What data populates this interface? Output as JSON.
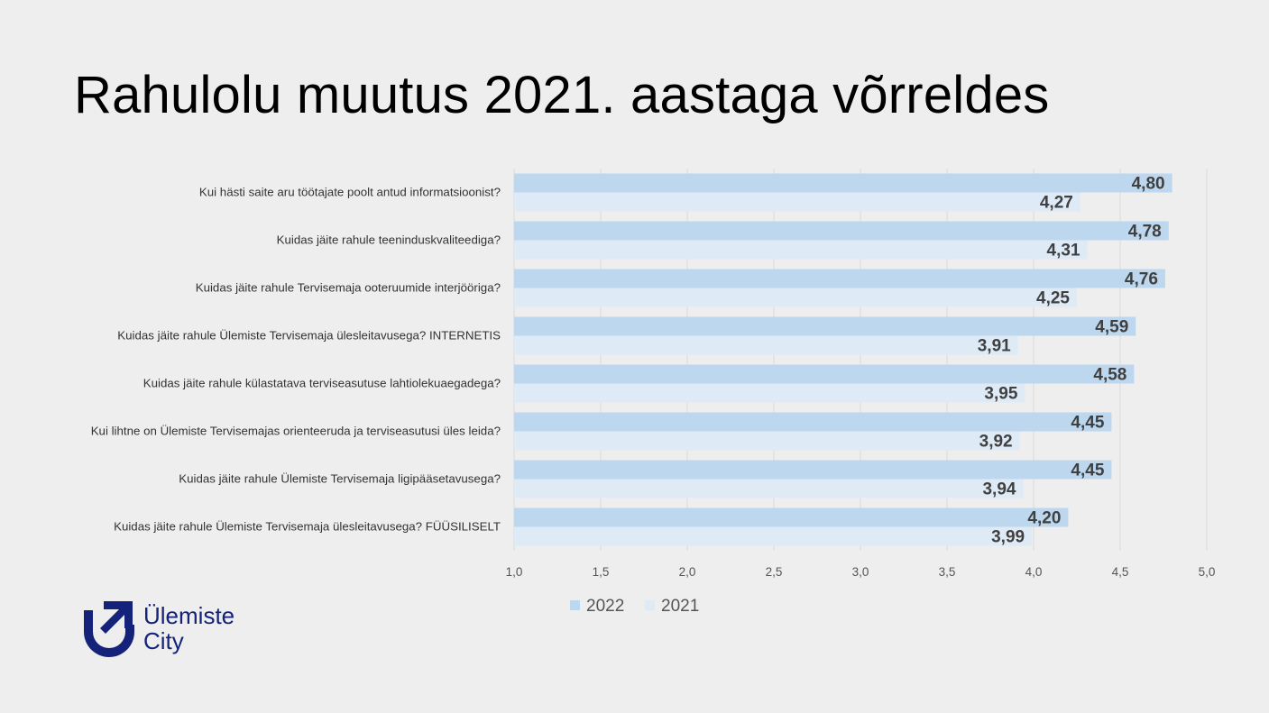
{
  "slide": {
    "title": "Rahulolu muutus 2021. aastaga võrreldes"
  },
  "logo": {
    "line1": "Ülemiste",
    "line2": "City",
    "color": "#14227a"
  },
  "chart_data": {
    "type": "bar",
    "orientation": "horizontal",
    "title": "",
    "xlabel": "",
    "ylabel": "",
    "xlim": [
      1.0,
      5.0
    ],
    "ticks": [
      "1,0",
      "1,5",
      "2,0",
      "2,5",
      "3,0",
      "3,5",
      "4,0",
      "4,5",
      "5,0"
    ],
    "tick_values": [
      1.0,
      1.5,
      2.0,
      2.5,
      3.0,
      3.5,
      4.0,
      4.5,
      5.0
    ],
    "grid": "vertical",
    "legend_position": "bottom",
    "categories": [
      "Kui hästi saite aru töötajate poolt antud informatsioonist?",
      "Kuidas jäite rahule teeninduskvaliteediga?",
      "Kuidas jäite rahule Tervisemaja ooteruumide interjööriga?",
      "Kuidas jäite rahule Ülemiste Tervisemaja ülesleitavusega? INTERNETIS",
      "Kuidas jäite rahule külastatava terviseasutuse lahtiolekuaegadega?",
      "Kui lihtne on Ülemiste Tervisemajas orienteeruda ja terviseasutusi üles leida?",
      "Kuidas jäite rahule Ülemiste Tervisemaja ligipääsetavusega?",
      "Kuidas jäite rahule Ülemiste Tervisemaja ülesleitavusega? FÜÜSILISELT"
    ],
    "series": [
      {
        "name": "2022",
        "color": "#bdd7ee",
        "values": [
          4.8,
          4.78,
          4.76,
          4.59,
          4.58,
          4.45,
          4.45,
          4.2
        ],
        "labels": [
          "4,80",
          "4,78",
          "4,76",
          "4,59",
          "4,58",
          "4,45",
          "4,45",
          "4,20"
        ]
      },
      {
        "name": "2021",
        "color": "#deebf7",
        "values": [
          4.27,
          4.31,
          4.25,
          3.91,
          3.95,
          3.92,
          3.94,
          3.99
        ],
        "labels": [
          "4,27",
          "4,31",
          "4,25",
          "3,91",
          "3,95",
          "3,92",
          "3,94",
          "3,99"
        ]
      }
    ]
  }
}
